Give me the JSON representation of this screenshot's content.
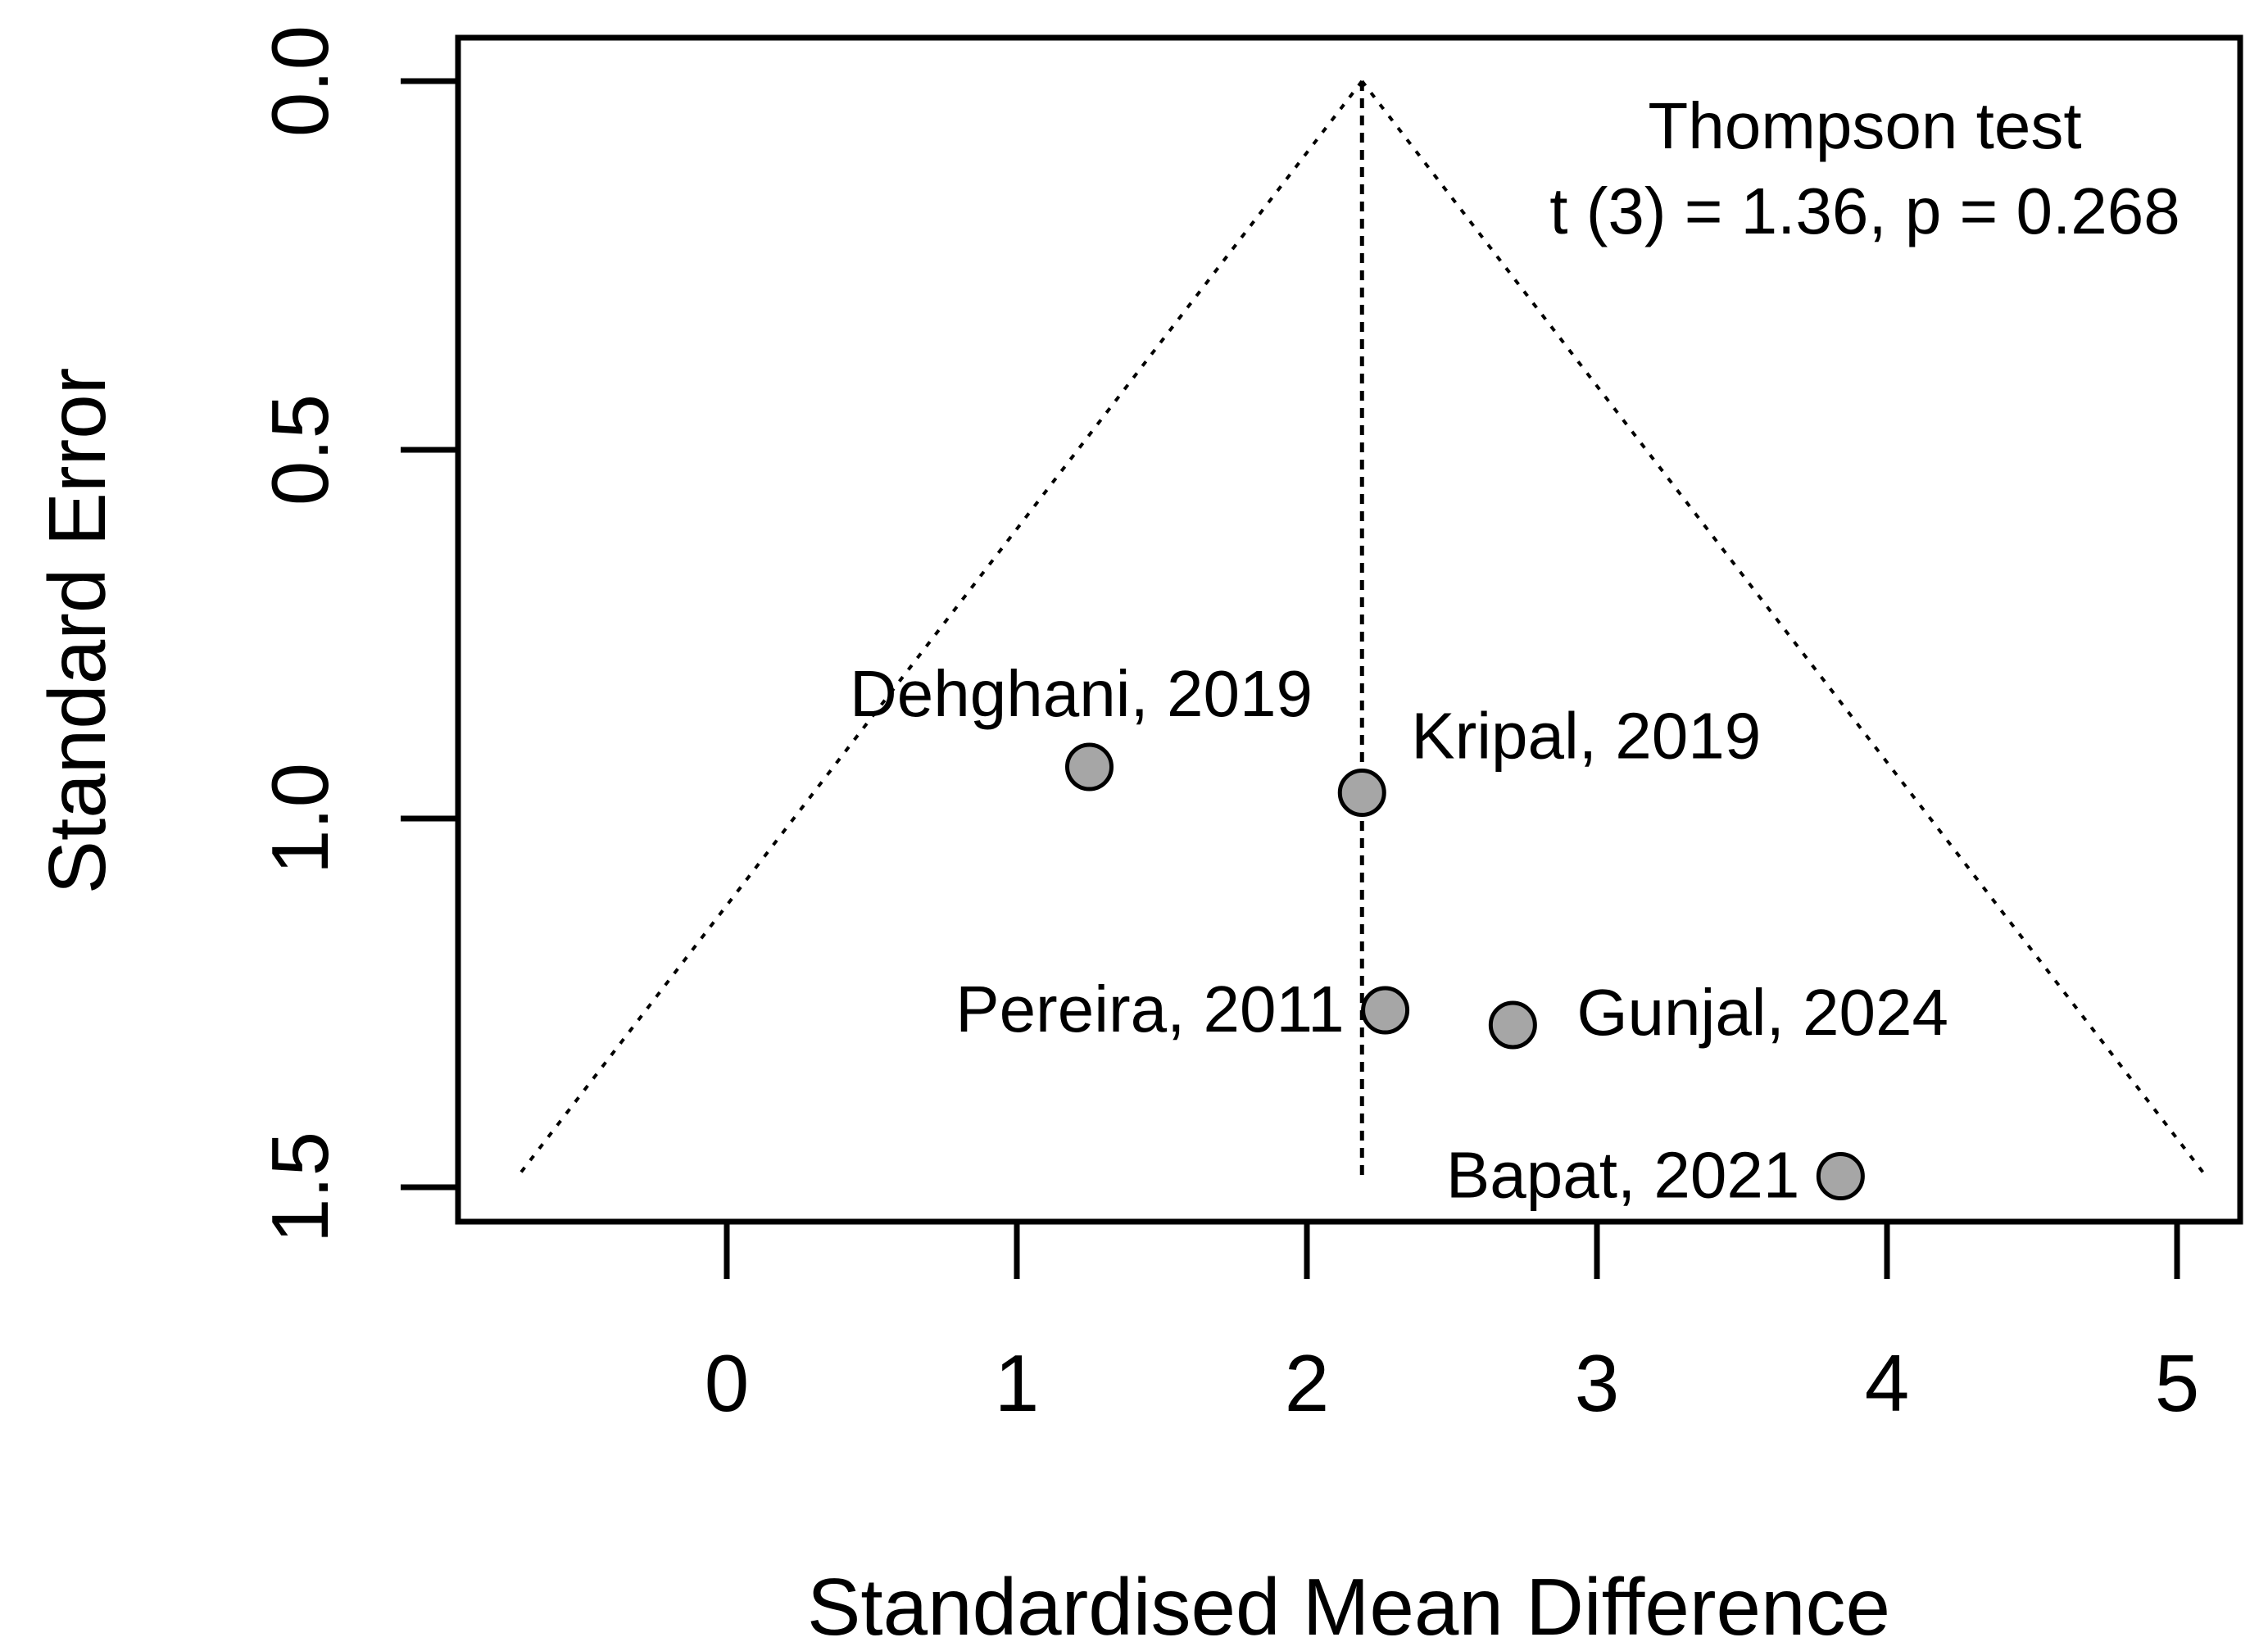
{
  "chart_data": {
    "type": "scatter",
    "subtype": "funnel",
    "title": "",
    "xlabel": "Standardised Mean Difference",
    "ylabel": "Standard Error",
    "xlim": [
      -0.93,
      5.25
    ],
    "ylim": [
      0,
      1.55
    ],
    "y_reversed": true,
    "x_ticks": [
      {
        "value": 0,
        "label": "0"
      },
      {
        "value": 1,
        "label": "1"
      },
      {
        "value": 2,
        "label": "2"
      },
      {
        "value": 3,
        "label": "3"
      },
      {
        "value": 4,
        "label": "4"
      },
      {
        "value": 5,
        "label": "5"
      }
    ],
    "y_ticks": [
      {
        "value": 0,
        "label": "0.0"
      },
      {
        "value": 0.5,
        "label": "0.5"
      },
      {
        "value": 1.0,
        "label": "1.0"
      },
      {
        "value": 1.5,
        "label": "1.5"
      }
    ],
    "pooled_estimate": 2.19,
    "funnel": {
      "apex_se": 0,
      "max_se": 1.48,
      "left_x_at_max": -0.71,
      "right_x_at_max": 5.09
    },
    "studies": [
      {
        "label": "Dehghani, 2019",
        "smd": 1.25,
        "se": 0.93,
        "label_side": "above-left"
      },
      {
        "label": "Kripal, 2019",
        "smd": 2.19,
        "se": 0.965,
        "label_side": "above-right"
      },
      {
        "label": "Pereira, 2011",
        "smd": 2.27,
        "se": 1.26,
        "label_side": "left"
      },
      {
        "label": "Gunjal, 2024",
        "smd": 2.71,
        "se": 1.28,
        "label_side": "right"
      },
      {
        "label": "Bapat, 2021",
        "smd": 3.84,
        "se": 1.485,
        "label_side": "left"
      }
    ],
    "annotation": {
      "line1": "Thompson test",
      "line2": "t (3) = 1.36, p = 0.268"
    },
    "colors": {
      "point_fill": "#a6a6a6",
      "point_stroke": "#000000",
      "line": "#000000"
    }
  }
}
